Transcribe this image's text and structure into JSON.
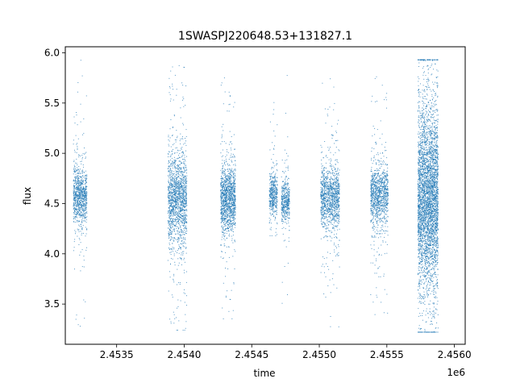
{
  "chart_data": {
    "type": "scatter",
    "title": "1SWASPJ220648.53+131827.1",
    "xlabel": "time",
    "ylabel": "flux",
    "x_offset_label": "1e6",
    "xlim": [
      2453120,
      2456080
    ],
    "ylim": [
      3.1,
      6.06
    ],
    "xticks": [
      2.4535,
      2.454,
      2.4545,
      2.455,
      2.4555,
      2.456
    ],
    "xtick_labels": [
      "2.4535",
      "2.4540",
      "2.4545",
      "2.4550",
      "2.4555",
      "2.4560"
    ],
    "yticks": [
      3.5,
      4.0,
      4.5,
      5.0,
      5.5,
      6.0
    ],
    "ytick_labels": [
      "3.5",
      "4.0",
      "4.5",
      "5.0",
      "5.5",
      "6.0"
    ],
    "grid": false,
    "marker_color": "#1f77b4",
    "clusters": [
      {
        "x_start": 2453180,
        "x_end": 2453280,
        "center": 4.58,
        "spread": 0.14,
        "min": 3.23,
        "max": 5.93,
        "count": 900
      },
      {
        "x_start": 2453880,
        "x_end": 2454020,
        "center": 4.55,
        "spread": 0.22,
        "min": 3.24,
        "max": 5.88,
        "count": 1600
      },
      {
        "x_start": 2454270,
        "x_end": 2454380,
        "center": 4.55,
        "spread": 0.16,
        "min": 3.33,
        "max": 5.76,
        "count": 1300
      },
      {
        "x_start": 2454630,
        "x_end": 2454690,
        "center": 4.58,
        "spread": 0.1,
        "min": 4.18,
        "max": 5.6,
        "count": 450
      },
      {
        "x_start": 2454720,
        "x_end": 2454780,
        "center": 4.52,
        "spread": 0.1,
        "min": 3.43,
        "max": 5.85,
        "count": 450
      },
      {
        "x_start": 2455010,
        "x_end": 2455150,
        "center": 4.55,
        "spread": 0.15,
        "min": 3.26,
        "max": 5.8,
        "count": 1200
      },
      {
        "x_start": 2455380,
        "x_end": 2455510,
        "center": 4.58,
        "spread": 0.15,
        "min": 3.36,
        "max": 5.78,
        "count": 1100
      },
      {
        "x_start": 2455730,
        "x_end": 2455880,
        "center": 4.55,
        "spread": 0.42,
        "min": 3.22,
        "max": 5.93,
        "count": 4000
      }
    ]
  }
}
